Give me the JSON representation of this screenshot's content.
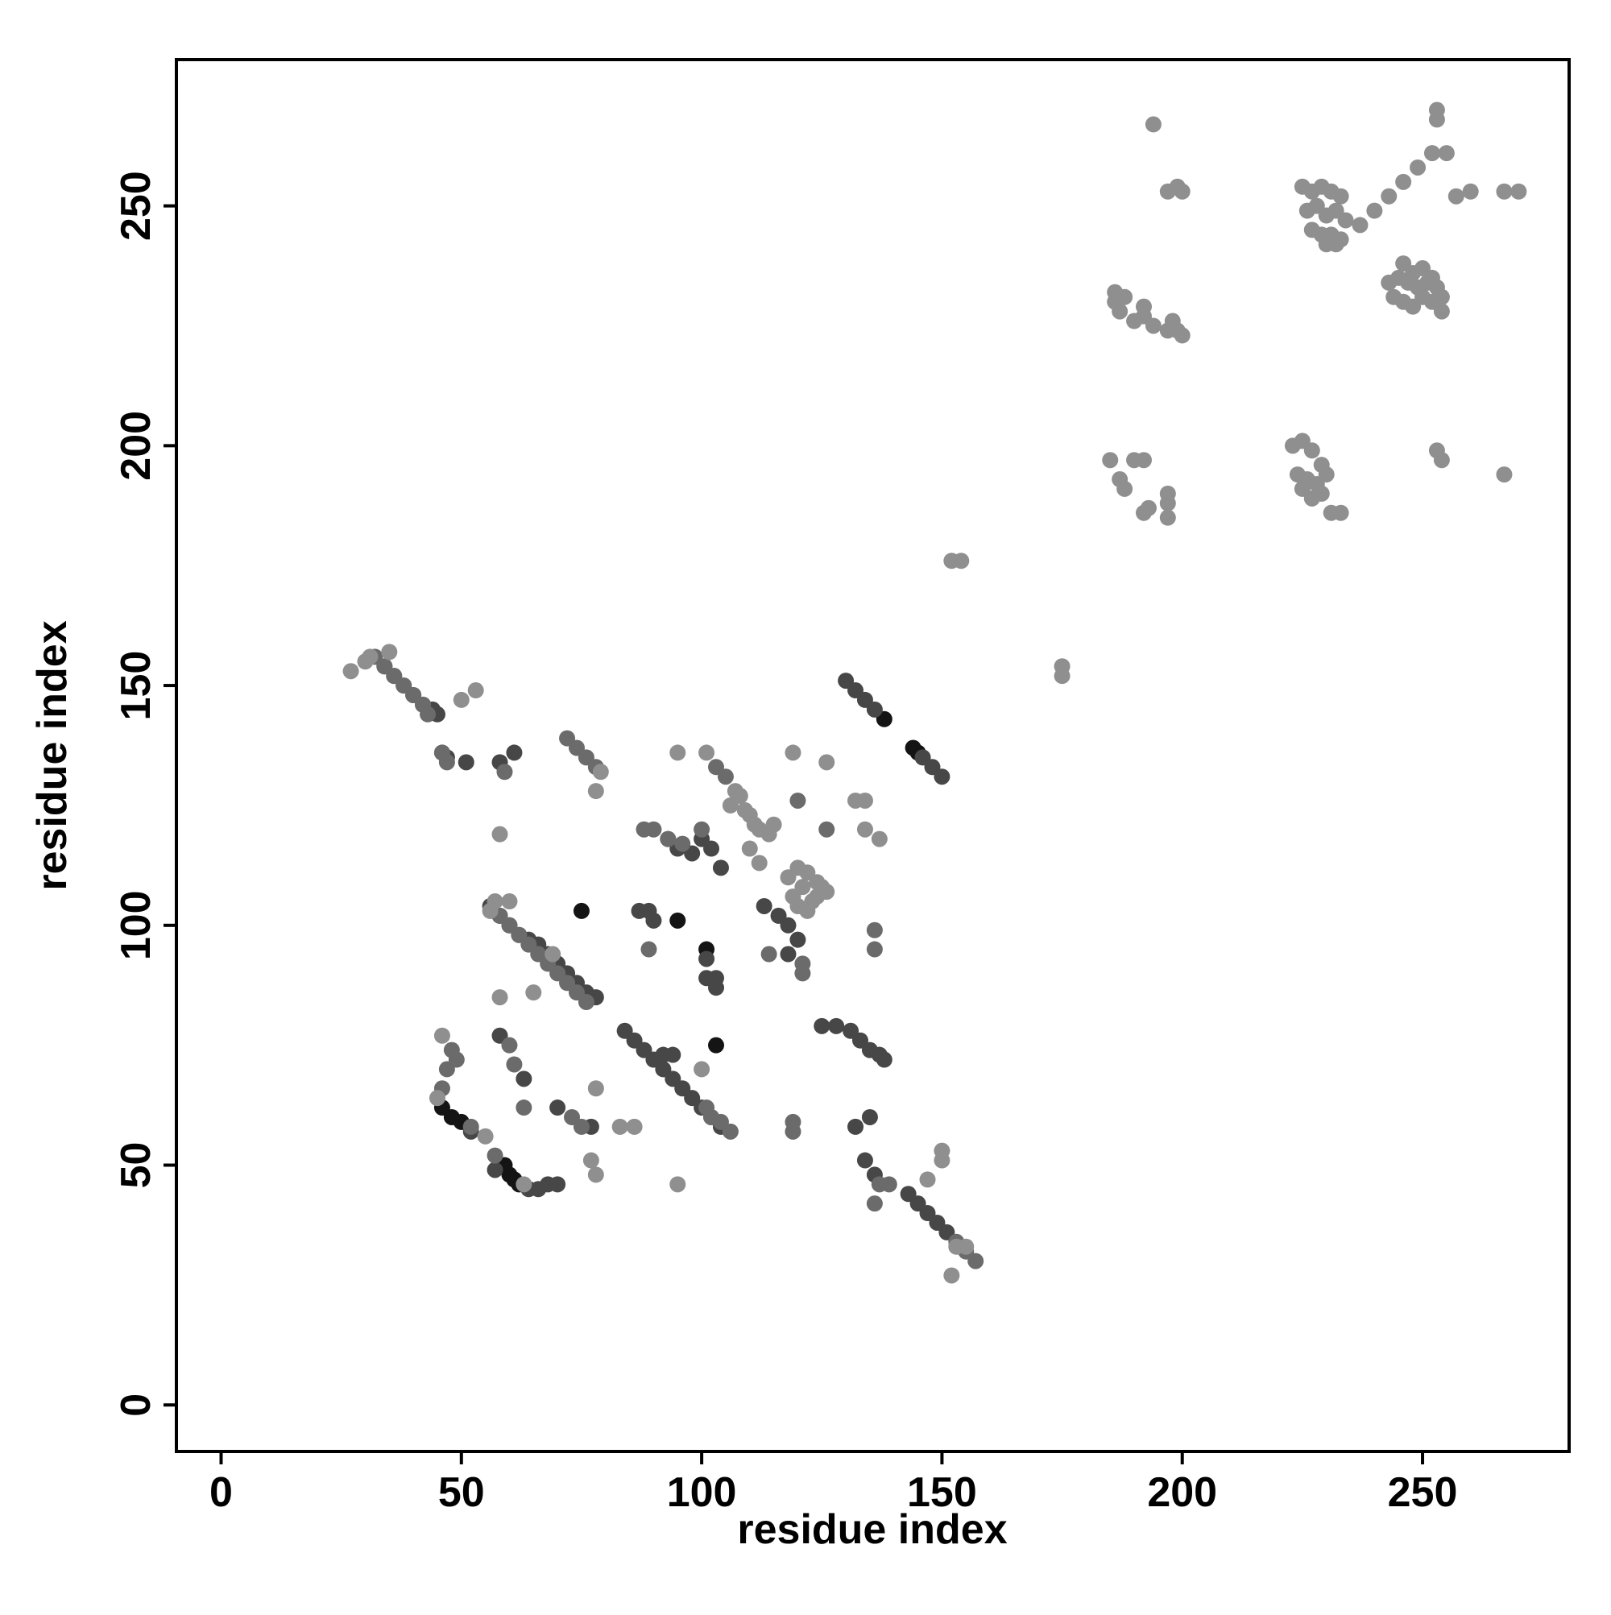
{
  "chart_data": {
    "type": "scatter",
    "xlabel": "residue index",
    "ylabel": "residue index",
    "xlim": [
      -9.3,
      280.5
    ],
    "ylim": [
      -9.7,
      280.5
    ],
    "xticks": [
      0,
      50,
      100,
      150,
      200,
      250
    ],
    "yticks": [
      0,
      50,
      100,
      150,
      200,
      250
    ],
    "series": [
      {
        "color": "#141414",
        "x": [
          95,
          101,
          103,
          138,
          144,
          145,
          46,
          48,
          60,
          62,
          75,
          59,
          50,
          61
        ],
        "y": [
          101,
          95,
          75,
          143,
          137,
          136,
          62,
          60,
          48,
          46,
          103,
          50,
          59,
          47
        ]
      },
      {
        "color": "#474747",
        "x": [
          56,
          58,
          60,
          62,
          64,
          66,
          68,
          70,
          72,
          74,
          76,
          78,
          84,
          86,
          88,
          90,
          92,
          94,
          96,
          98,
          100,
          102,
          104,
          130,
          132,
          134,
          136,
          146,
          148,
          150,
          143,
          145,
          147,
          149,
          151,
          125,
          128,
          131,
          133,
          135,
          137,
          138,
          58,
          61,
          87,
          89,
          90,
          101,
          101,
          103,
          103,
          92,
          94,
          63,
          58,
          70,
          77,
          132,
          135,
          134,
          136,
          45,
          44,
          42,
          40,
          38,
          36,
          34,
          47,
          46,
          51,
          57,
          64,
          66,
          68,
          70,
          52,
          116,
          118,
          120,
          113,
          118,
          102,
          104,
          95,
          98,
          100
        ],
        "y": [
          104,
          102,
          100,
          98,
          97,
          96,
          94,
          92,
          90,
          88,
          86,
          85,
          78,
          76,
          74,
          72,
          70,
          68,
          66,
          64,
          62,
          60,
          58,
          151,
          149,
          147,
          145,
          135,
          133,
          131,
          44,
          42,
          40,
          38,
          36,
          79,
          79,
          78,
          76,
          74,
          73,
          72,
          134,
          136,
          103,
          103,
          101,
          93,
          89,
          89,
          87,
          73,
          73,
          68,
          77,
          62,
          58,
          58,
          60,
          51,
          48,
          144,
          145,
          146,
          148,
          150,
          152,
          154,
          135,
          136,
          134,
          49,
          45,
          45,
          46,
          46,
          57,
          102,
          100,
          97,
          104,
          94,
          116,
          112,
          116,
          115,
          118
        ]
      },
      {
        "color": "#6b6b6b",
        "x": [
          32,
          34,
          36,
          38,
          40,
          42,
          43,
          46,
          47,
          72,
          74,
          76,
          78,
          58,
          60,
          62,
          64,
          66,
          68,
          70,
          72,
          74,
          76,
          153,
          155,
          157,
          106,
          104,
          102,
          101,
          60,
          63,
          61,
          46,
          47,
          49,
          52,
          57,
          73,
          75,
          59,
          93,
          96,
          100,
          103,
          105,
          88,
          90,
          93,
          121,
          114,
          121,
          126,
          136,
          136,
          137,
          139,
          136,
          89,
          119,
          119,
          120,
          48
        ],
        "y": [
          156,
          154,
          152,
          150,
          148,
          146,
          144,
          136,
          134,
          139,
          137,
          135,
          133,
          102,
          100,
          98,
          96,
          94,
          92,
          90,
          88,
          86,
          84,
          34,
          32,
          30,
          57,
          59,
          60,
          62,
          75,
          62,
          71,
          66,
          70,
          72,
          58,
          52,
          60,
          58,
          132,
          118,
          117,
          120,
          133,
          131,
          120,
          120,
          118,
          92,
          94,
          90,
          120,
          99,
          95,
          46,
          46,
          42,
          95,
          59,
          57,
          126,
          74
        ]
      },
      {
        "color": "#8f8f8f",
        "x": [
          194,
          197,
          199,
          200,
          225,
          227,
          229,
          231,
          233,
          226,
          228,
          230,
          232,
          234,
          227,
          229,
          231,
          233,
          230,
          232,
          237,
          240,
          243,
          246,
          249,
          252,
          255,
          253,
          253,
          257,
          260,
          267,
          270,
          243,
          245,
          247,
          249,
          251,
          253,
          254,
          244,
          246,
          248,
          250,
          252,
          254,
          246,
          248,
          250,
          252,
          186,
          187,
          190,
          192,
          194,
          197,
          199,
          200,
          186,
          188,
          192,
          198,
          185,
          190,
          192,
          187,
          188,
          197,
          197,
          193,
          192,
          197,
          223,
          225,
          227,
          229,
          224,
          226,
          228,
          230,
          225,
          227,
          229,
          231,
          233,
          253,
          254,
          267,
          152,
          154,
          175,
          175,
          27,
          30,
          31,
          50,
          53,
          35,
          106,
          108,
          110,
          112,
          114,
          107,
          109,
          111,
          118,
          120,
          122,
          124,
          126,
          119,
          121,
          123,
          125,
          120,
          122,
          124,
          110,
          112,
          115,
          95,
          101,
          119,
          126,
          132,
          134,
          134,
          137,
          79,
          78,
          150,
          150,
          153,
          155,
          147,
          152,
          56,
          57,
          60,
          65,
          69,
          77,
          58,
          58,
          83,
          86,
          95,
          78,
          78,
          46,
          45,
          100,
          63,
          55
        ],
        "y": [
          267,
          253,
          254,
          253,
          254,
          253,
          254,
          253,
          252,
          249,
          250,
          248,
          249,
          247,
          245,
          244,
          244,
          243,
          242,
          242,
          246,
          249,
          252,
          255,
          258,
          261,
          261,
          270,
          268,
          252,
          253,
          253,
          253,
          234,
          235,
          234,
          233,
          234,
          233,
          231,
          231,
          230,
          229,
          231,
          230,
          228,
          238,
          236,
          237,
          235,
          230,
          228,
          226,
          227,
          225,
          224,
          224,
          223,
          232,
          231,
          229,
          226,
          197,
          197,
          197,
          193,
          191,
          190,
          188,
          187,
          186,
          185,
          200,
          201,
          199,
          196,
          194,
          193,
          192,
          194,
          191,
          189,
          190,
          186,
          186,
          199,
          197,
          194,
          176,
          176,
          154,
          152,
          153,
          155,
          156,
          147,
          149,
          157,
          125,
          127,
          123,
          120,
          119,
          128,
          124,
          121,
          110,
          112,
          111,
          109,
          107,
          106,
          108,
          105,
          108,
          104,
          103,
          106,
          116,
          113,
          121,
          136,
          136,
          136,
          134,
          126,
          126,
          120,
          118,
          132,
          128,
          51,
          53,
          33,
          33,
          47,
          27,
          103,
          105,
          105,
          86,
          94,
          51,
          119,
          85,
          58,
          58,
          46,
          48,
          66,
          77,
          64,
          70,
          46,
          56
        ]
      }
    ]
  }
}
